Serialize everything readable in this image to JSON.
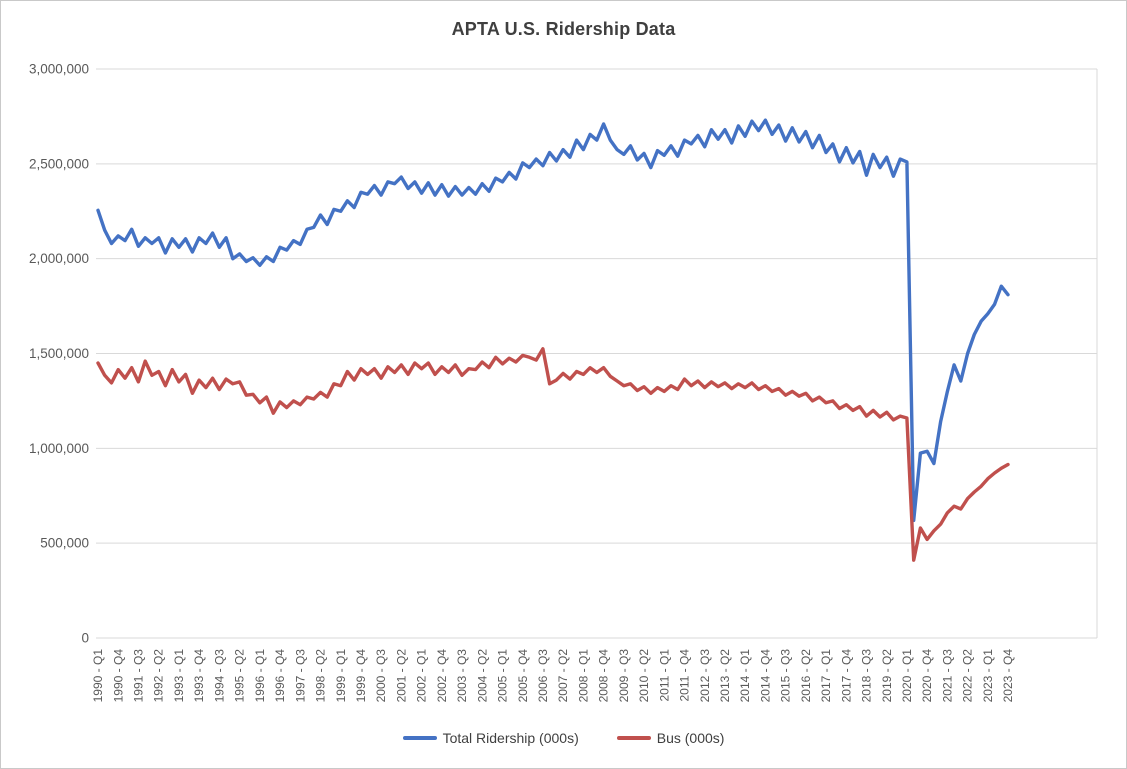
{
  "title": "APTA U.S. Ridership Data",
  "colors": {
    "total_series": "#4472C4",
    "bus_series": "#C0504D",
    "gridline": "#D9D9D9",
    "axis_text": "#595959",
    "title_text": "#3F3F3F"
  },
  "legend": [
    {
      "label": "Total Ridership (000s)"
    },
    {
      "label": "Bus (000s)"
    }
  ],
  "y_axis": {
    "ticks": [
      "3,000,000",
      "2,500,000",
      "2,000,000",
      "1,500,000",
      "1,000,000",
      "500,000",
      "0"
    ],
    "min": 0,
    "max": 3000000
  },
  "x_axis": {
    "label_every": 3,
    "tick_labels": [
      "1990 - Q1",
      "1990 - Q4",
      "1991 - Q3",
      "1992 - Q2",
      "1993 - Q1",
      "1993 - Q4",
      "1994 - Q3",
      "1995 - Q2",
      "1996 - Q1",
      "1996 - Q4",
      "1997 - Q3",
      "1998 - Q2",
      "1999 - Q1",
      "1999 - Q4",
      "2000 - Q3",
      "2001 - Q2",
      "2002 - Q1",
      "2002 - Q4",
      "2003 - Q3",
      "2004 - Q2",
      "2005 - Q1",
      "2005 - Q4",
      "2006 - Q3",
      "2007 - Q2",
      "2008 - Q1",
      "2008 - Q4",
      "2009 - Q3",
      "2010 - Q2",
      "2011 - Q1",
      "2011 - Q4",
      "2012 - Q3",
      "2013 - Q2",
      "2014 - Q1",
      "2014 - Q4",
      "2015 - Q3",
      "2016 - Q2",
      "2017 - Q1",
      "2017 - Q4",
      "2018 - Q3",
      "2019 - Q2",
      "2020 - Q1",
      "2020 - Q4",
      "2021 - Q3",
      "2022 - Q2",
      "2023 - Q1",
      "2023 - Q4"
    ]
  },
  "chart_data": {
    "type": "line",
    "title": "APTA U.S. Ridership Data",
    "xlabel": "",
    "ylabel": "",
    "ylim": [
      0,
      3000000
    ],
    "grid": "horizontal",
    "legend_position": "bottom",
    "values_unit": "thousands",
    "value_multiplier": 1000,
    "categories": [
      "1990 - Q1",
      "1990 - Q2",
      "1990 - Q3",
      "1990 - Q4",
      "1991 - Q1",
      "1991 - Q2",
      "1991 - Q3",
      "1991 - Q4",
      "1992 - Q1",
      "1992 - Q2",
      "1992 - Q3",
      "1992 - Q4",
      "1993 - Q1",
      "1993 - Q2",
      "1993 - Q3",
      "1993 - Q4",
      "1994 - Q1",
      "1994 - Q2",
      "1994 - Q3",
      "1994 - Q4",
      "1995 - Q1",
      "1995 - Q2",
      "1995 - Q3",
      "1995 - Q4",
      "1996 - Q1",
      "1996 - Q2",
      "1996 - Q3",
      "1996 - Q4",
      "1997 - Q1",
      "1997 - Q2",
      "1997 - Q3",
      "1997 - Q4",
      "1998 - Q1",
      "1998 - Q2",
      "1998 - Q3",
      "1998 - Q4",
      "1999 - Q1",
      "1999 - Q2",
      "1999 - Q3",
      "1999 - Q4",
      "2000 - Q1",
      "2000 - Q2",
      "2000 - Q3",
      "2000 - Q4",
      "2001 - Q1",
      "2001 - Q2",
      "2001 - Q3",
      "2001 - Q4",
      "2002 - Q1",
      "2002 - Q2",
      "2002 - Q3",
      "2002 - Q4",
      "2003 - Q1",
      "2003 - Q2",
      "2003 - Q3",
      "2003 - Q4",
      "2004 - Q1",
      "2004 - Q2",
      "2004 - Q3",
      "2004 - Q4",
      "2005 - Q1",
      "2005 - Q2",
      "2005 - Q3",
      "2005 - Q4",
      "2006 - Q1",
      "2006 - Q2",
      "2006 - Q3",
      "2006 - Q4",
      "2007 - Q1",
      "2007 - Q2",
      "2007 - Q3",
      "2007 - Q4",
      "2008 - Q1",
      "2008 - Q2",
      "2008 - Q3",
      "2008 - Q4",
      "2009 - Q1",
      "2009 - Q2",
      "2009 - Q3",
      "2009 - Q4",
      "2010 - Q1",
      "2010 - Q2",
      "2010 - Q3",
      "2010 - Q4",
      "2011 - Q1",
      "2011 - Q2",
      "2011 - Q3",
      "2011 - Q4",
      "2012 - Q1",
      "2012 - Q2",
      "2012 - Q3",
      "2012 - Q4",
      "2013 - Q1",
      "2013 - Q2",
      "2013 - Q3",
      "2013 - Q4",
      "2014 - Q1",
      "2014 - Q2",
      "2014 - Q3",
      "2014 - Q4",
      "2015 - Q1",
      "2015 - Q2",
      "2015 - Q3",
      "2015 - Q4",
      "2016 - Q1",
      "2016 - Q2",
      "2016 - Q3",
      "2016 - Q4",
      "2017 - Q1",
      "2017 - Q2",
      "2017 - Q3",
      "2017 - Q4",
      "2018 - Q1",
      "2018 - Q2",
      "2018 - Q3",
      "2018 - Q4",
      "2019 - Q1",
      "2019 - Q2",
      "2019 - Q3",
      "2019 - Q4",
      "2020 - Q1",
      "2020 - Q2",
      "2020 - Q3",
      "2020 - Q4",
      "2021 - Q1",
      "2021 - Q2",
      "2021 - Q3",
      "2021 - Q4",
      "2022 - Q1",
      "2022 - Q2",
      "2022 - Q3",
      "2022 - Q4",
      "2023 - Q1",
      "2023 - Q2",
      "2023 - Q3",
      "2023 - Q4"
    ],
    "series": [
      {
        "name": "Total Ridership (000s)",
        "color": "#4472C4",
        "values": [
          2255,
          2150,
          2080,
          2120,
          2095,
          2155,
          2065,
          2110,
          2080,
          2110,
          2030,
          2105,
          2060,
          2105,
          2035,
          2110,
          2080,
          2135,
          2060,
          2110,
          2000,
          2025,
          1985,
          2005,
          1965,
          2010,
          1985,
          2060,
          2045,
          2095,
          2075,
          2155,
          2165,
          2230,
          2180,
          2260,
          2250,
          2305,
          2270,
          2350,
          2340,
          2385,
          2335,
          2405,
          2395,
          2430,
          2370,
          2405,
          2345,
          2400,
          2335,
          2390,
          2330,
          2380,
          2335,
          2375,
          2340,
          2395,
          2355,
          2425,
          2405,
          2455,
          2420,
          2505,
          2480,
          2525,
          2490,
          2560,
          2515,
          2575,
          2535,
          2625,
          2575,
          2655,
          2625,
          2710,
          2625,
          2575,
          2550,
          2595,
          2520,
          2555,
          2480,
          2570,
          2545,
          2595,
          2540,
          2625,
          2605,
          2650,
          2590,
          2680,
          2630,
          2680,
          2610,
          2700,
          2645,
          2725,
          2675,
          2730,
          2655,
          2705,
          2620,
          2690,
          2615,
          2670,
          2585,
          2650,
          2560,
          2605,
          2510,
          2585,
          2505,
          2565,
          2440,
          2550,
          2480,
          2535,
          2435,
          2525,
          2510,
          620,
          975,
          985,
          920,
          1140,
          1300,
          1440,
          1355,
          1500,
          1600,
          1670,
          1710,
          1760,
          1855,
          1810
        ]
      },
      {
        "name": "Bus (000s)",
        "color": "#C0504D",
        "values": [
          1450,
          1385,
          1345,
          1415,
          1370,
          1425,
          1350,
          1460,
          1385,
          1405,
          1330,
          1415,
          1350,
          1390,
          1290,
          1360,
          1320,
          1370,
          1310,
          1365,
          1340,
          1350,
          1280,
          1285,
          1240,
          1270,
          1185,
          1245,
          1215,
          1250,
          1230,
          1270,
          1260,
          1295,
          1270,
          1340,
          1330,
          1405,
          1360,
          1420,
          1390,
          1420,
          1370,
          1430,
          1400,
          1440,
          1390,
          1450,
          1420,
          1450,
          1390,
          1430,
          1400,
          1440,
          1385,
          1420,
          1415,
          1455,
          1425,
          1480,
          1445,
          1475,
          1455,
          1490,
          1480,
          1465,
          1525,
          1340,
          1360,
          1395,
          1365,
          1405,
          1390,
          1425,
          1400,
          1425,
          1380,
          1355,
          1330,
          1340,
          1305,
          1325,
          1290,
          1320,
          1300,
          1330,
          1310,
          1365,
          1330,
          1355,
          1320,
          1350,
          1325,
          1345,
          1315,
          1340,
          1320,
          1345,
          1310,
          1330,
          1300,
          1315,
          1280,
          1300,
          1275,
          1290,
          1250,
          1270,
          1240,
          1250,
          1210,
          1230,
          1200,
          1220,
          1170,
          1200,
          1165,
          1190,
          1150,
          1170,
          1160,
          410,
          580,
          520,
          565,
          600,
          660,
          695,
          680,
          735,
          770,
          800,
          840,
          870,
          895,
          915
        ]
      }
    ]
  }
}
